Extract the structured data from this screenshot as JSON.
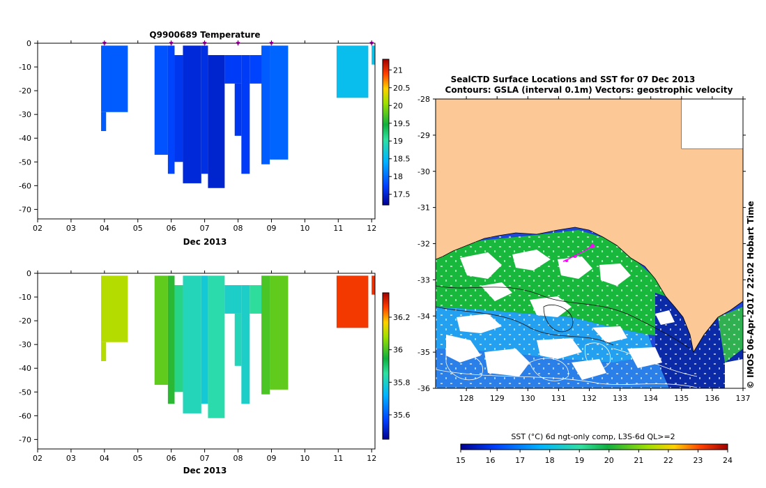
{
  "chart_data": [
    {
      "type": "heatmap",
      "title": "Q9900689  Temperature",
      "xlabel": "Dec 2013",
      "x_ticks": [
        "02",
        "03",
        "04",
        "05",
        "06",
        "07",
        "08",
        "09",
        "10",
        "11",
        "12"
      ],
      "y_ticks": [
        "0",
        "-10",
        "-20",
        "-30",
        "-40",
        "-50",
        "-60",
        "-70"
      ],
      "ylim": [
        -74,
        0
      ],
      "xlim": [
        2,
        12.1
      ],
      "colorbar": {
        "min": 17.2,
        "max": 21.3,
        "ticks": [
          "17.5",
          "18",
          "18.5",
          "19",
          "19.5",
          "20",
          "20.5",
          "21"
        ],
        "colors": [
          "#00008f",
          "#0040ff",
          "#00b4ff",
          "#30e0a0",
          "#10b040",
          "#a0e000",
          "#ffd000",
          "#ff4000",
          "#a00000"
        ]
      },
      "markers_day": [
        4.0,
        6.0,
        7.0,
        8.0,
        9.0,
        12.0
      ],
      "profiles": [
        {
          "t0": 3.9,
          "t1": 4.7,
          "top": -1,
          "bottom": -29,
          "value": 17.9
        },
        {
          "t0": 3.9,
          "t1": 4.05,
          "top": -29,
          "bottom": -37,
          "value": 17.9
        },
        {
          "t0": 5.5,
          "t1": 5.9,
          "top": -1,
          "bottom": -47,
          "value": 17.85
        },
        {
          "t0": 5.9,
          "t1": 6.1,
          "top": -1,
          "bottom": -55,
          "value": 17.75
        },
        {
          "t0": 6.1,
          "t1": 6.35,
          "top": -5,
          "bottom": -50,
          "value": 17.65
        },
        {
          "t0": 6.35,
          "t1": 6.9,
          "top": -1,
          "bottom": -59,
          "value": 17.55
        },
        {
          "t0": 6.9,
          "t1": 7.1,
          "top": -1,
          "bottom": -55,
          "value": 17.6
        },
        {
          "t0": 7.1,
          "t1": 7.6,
          "top": -5,
          "bottom": -61,
          "value": 17.5
        },
        {
          "t0": 7.6,
          "t1": 8.1,
          "top": -5,
          "bottom": -17,
          "value": 17.7
        },
        {
          "t0": 7.9,
          "t1": 8.1,
          "top": -17,
          "bottom": -39,
          "value": 17.65
        },
        {
          "t0": 8.1,
          "t1": 8.35,
          "top": -5,
          "bottom": -55,
          "value": 17.7
        },
        {
          "t0": 8.35,
          "t1": 8.75,
          "top": -5,
          "bottom": -17,
          "value": 17.75
        },
        {
          "t0": 8.7,
          "t1": 8.95,
          "top": -1,
          "bottom": -51,
          "value": 17.9
        },
        {
          "t0": 8.95,
          "t1": 9.5,
          "top": -1,
          "bottom": -49,
          "value": 17.95
        },
        {
          "t0": 10.95,
          "t1": 11.9,
          "top": -1,
          "bottom": -23,
          "value": 18.55
        },
        {
          "t0": 12.0,
          "t1": 12.1,
          "top": -1,
          "bottom": -9,
          "value": 18.6
        }
      ]
    },
    {
      "type": "heatmap",
      "title": "",
      "xlabel": "Dec 2013",
      "x_ticks": [
        "02",
        "03",
        "04",
        "05",
        "06",
        "07",
        "08",
        "09",
        "10",
        "11",
        "12"
      ],
      "y_ticks": [
        "0",
        "-10",
        "-20",
        "-30",
        "-40",
        "-50",
        "-60",
        "-70"
      ],
      "ylim": [
        -74,
        0
      ],
      "xlim": [
        2,
        12.1
      ],
      "colorbar": {
        "min": 35.45,
        "max": 36.35,
        "ticks": [
          "35.6",
          "35.8",
          "36",
          "36.2"
        ],
        "colors": [
          "#00008f",
          "#0040ff",
          "#00b4ff",
          "#30e0a0",
          "#10b040",
          "#a0e000",
          "#ffd000",
          "#ff4000",
          "#a00000"
        ]
      },
      "profiles": [
        {
          "t0": 3.9,
          "t1": 4.7,
          "top": -1,
          "bottom": -29,
          "value": 36.1
        },
        {
          "t0": 3.9,
          "t1": 4.05,
          "top": -29,
          "bottom": -37,
          "value": 36.1
        },
        {
          "t0": 5.5,
          "t1": 5.9,
          "top": -1,
          "bottom": -47,
          "value": 36.02
        },
        {
          "t0": 5.9,
          "t1": 6.1,
          "top": -1,
          "bottom": -55,
          "value": 35.97
        },
        {
          "t0": 6.1,
          "t1": 6.35,
          "top": -5,
          "bottom": -50,
          "value": 35.88
        },
        {
          "t0": 6.35,
          "t1": 6.9,
          "top": -1,
          "bottom": -59,
          "value": 35.82
        },
        {
          "t0": 6.9,
          "t1": 7.1,
          "top": -1,
          "bottom": -55,
          "value": 35.78
        },
        {
          "t0": 7.1,
          "t1": 7.6,
          "top": -1,
          "bottom": -61,
          "value": 35.84
        },
        {
          "t0": 7.6,
          "t1": 8.1,
          "top": -5,
          "bottom": -17,
          "value": 35.8
        },
        {
          "t0": 7.9,
          "t1": 8.1,
          "top": -17,
          "bottom": -39,
          "value": 35.82
        },
        {
          "t0": 8.1,
          "t1": 8.35,
          "top": -5,
          "bottom": -55,
          "value": 35.8
        },
        {
          "t0": 8.35,
          "t1": 8.75,
          "top": -5,
          "bottom": -17,
          "value": 35.86
        },
        {
          "t0": 8.7,
          "t1": 8.95,
          "top": -1,
          "bottom": -51,
          "value": 36.0
        },
        {
          "t0": 8.95,
          "t1": 9.5,
          "top": -1,
          "bottom": -49,
          "value": 36.02
        },
        {
          "t0": 10.95,
          "t1": 11.9,
          "top": -1,
          "bottom": -23,
          "value": 36.27
        },
        {
          "t0": 12.0,
          "t1": 12.1,
          "top": -1,
          "bottom": -9,
          "value": 36.28
        }
      ]
    }
  ],
  "map": {
    "title_line1": "SealCTD Surface Locations and SST for 07 Dec 2013",
    "title_line2": "Contours: GSLA (interval 0.1m) Vectors: geostrophic velocity",
    "lon_ticks": [
      "128",
      "129",
      "130",
      "131",
      "132",
      "133",
      "134",
      "135",
      "136",
      "137"
    ],
    "lat_ticks": [
      "-28",
      "-29",
      "-30",
      "-31",
      "-32",
      "-33",
      "-34",
      "-35",
      "-36"
    ],
    "lon_range": [
      127.0,
      137.0
    ],
    "lat_range": [
      -36.0,
      -28.0
    ],
    "side_text": "© IMOS 06-Apr-2017 22:02 Hobart Time",
    "land_color": "#fcc996",
    "colorbar": {
      "label": "SST (°C) 6d ngt-only comp, L3S-6d QL>=2",
      "ticks": [
        "15",
        "16",
        "17",
        "18",
        "19",
        "20",
        "21",
        "22",
        "23",
        "24"
      ],
      "min": 15,
      "max": 24
    },
    "track_color": "#ff00ff"
  }
}
